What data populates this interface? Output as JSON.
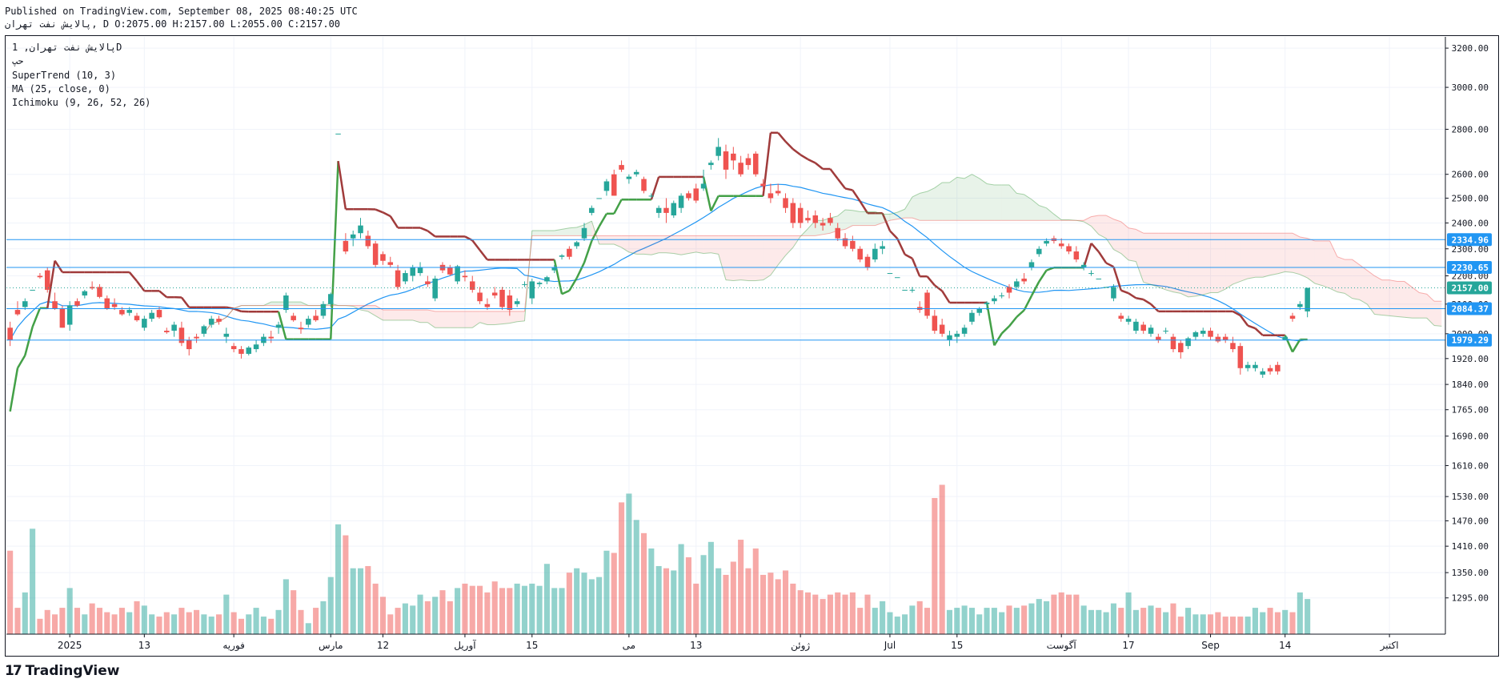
{
  "header": {
    "published": "Published on TradingView.com, September 08, 2025 08:40:25 UTC",
    "ohlc": "پالایش نفت تهران, D O:2075.00 H:2157.00 L:2055.00 C:2157.00"
  },
  "legend": {
    "symbol": "پالایش نفت تهران, 1D",
    "ticker": "حپ",
    "indicators": [
      "SuperTrend (10, 3)",
      "MA (25, close, 0)",
      "Ichimoku (9, 26, 52, 26)"
    ]
  },
  "branding": {
    "name": "TradingView",
    "mark": "17"
  },
  "chart_data": {
    "type": "candlestick",
    "timeframe": "1D",
    "y_axis": {
      "scale": "log",
      "range": [
        1220,
        3260
      ],
      "ticks": [
        3200,
        3000,
        2800,
        2600,
        2500,
        2400,
        2300,
        2200,
        2100,
        2000,
        1920,
        1840,
        1765,
        1690,
        1610,
        1530,
        1470,
        1410,
        1350,
        1295
      ],
      "tick_labels": [
        "3200.00",
        "3000.00",
        "2800.00",
        "2600.00",
        "2500.00",
        "2400.00",
        "2300.00",
        "2200.00",
        "2100.00",
        "2000.00",
        "1920.00",
        "1840.00",
        "1765.00",
        "1690.00",
        "1610.00",
        "1530.00",
        "1470.00",
        "1410.00",
        "1350.00",
        "1295.00"
      ]
    },
    "x_axis": {
      "tick_labels": [
        {
          "label": "2025",
          "bar": 8
        },
        {
          "label": "13",
          "bar": 18
        },
        {
          "label": "فوریه",
          "bar": 30
        },
        {
          "label": "مارس",
          "bar": 43
        },
        {
          "label": "12",
          "bar": 50
        },
        {
          "label": "آوریل",
          "bar": 61
        },
        {
          "label": "15",
          "bar": 70
        },
        {
          "label": "می",
          "bar": 83
        },
        {
          "label": "13",
          "bar": 92
        },
        {
          "label": "ژوئن",
          "bar": 106
        },
        {
          "label": "Jul",
          "bar": 118
        },
        {
          "label": "15",
          "bar": 127
        },
        {
          "label": "آگوست",
          "bar": 141
        },
        {
          "label": "17",
          "bar": 150
        },
        {
          "label": "Sep",
          "bar": 161
        },
        {
          "label": "14",
          "bar": 171
        },
        {
          "label": "اکتبر",
          "bar": 185
        }
      ],
      "total_slots": 193
    },
    "horizontal_lines": [
      {
        "value": 2334.96,
        "label": "2334.96",
        "style": "solid",
        "color": "#2196f3"
      },
      {
        "value": 2230.65,
        "label": "2230.65",
        "style": "solid",
        "color": "#2196f3"
      },
      {
        "value": 2157.0,
        "label": "2157.00",
        "style": "dotted",
        "color": "#26a69a",
        "current": true
      },
      {
        "value": 2084.37,
        "label": "2084.37",
        "style": "solid",
        "color": "#2196f3"
      },
      {
        "value": 1979.29,
        "label": "1979.29",
        "style": "solid",
        "color": "#2196f3"
      }
    ],
    "candles": [
      [
        2020,
        2040,
        1960,
        1980
      ],
      [
        2080,
        2110,
        2060,
        2065
      ],
      [
        2090,
        2120,
        2080,
        2110
      ],
      [
        2150,
        2150,
        2150,
        2150
      ],
      [
        2200,
        2210,
        2190,
        2195
      ],
      [
        2220,
        2230,
        2140,
        2150
      ],
      [
        2110,
        2140,
        2080,
        2085
      ],
      [
        2085,
        2095,
        2020,
        2020
      ],
      [
        2030,
        2110,
        2010,
        2095
      ],
      [
        2110,
        2120,
        2090,
        2095
      ],
      [
        2130,
        2150,
        2120,
        2145
      ],
      [
        2160,
        2180,
        2150,
        2155
      ],
      [
        2160,
        2170,
        2120,
        2125
      ],
      [
        2120,
        2130,
        2080,
        2085
      ],
      [
        2100,
        2120,
        2080,
        2090
      ],
      [
        2080,
        2090,
        2060,
        2065
      ],
      [
        2070,
        2090,
        2060,
        2080
      ],
      [
        2060,
        2070,
        2040,
        2045
      ],
      [
        2020,
        2060,
        2010,
        2050
      ],
      [
        2050,
        2080,
        2040,
        2070
      ],
      [
        2080,
        2090,
        2050,
        2055
      ],
      [
        2010,
        2020,
        2000,
        2005
      ],
      [
        2010,
        2040,
        1990,
        2030
      ],
      [
        2020,
        2040,
        1960,
        1970
      ],
      [
        1980,
        1990,
        1930,
        1950
      ],
      [
        1990,
        2000,
        1970,
        1985
      ],
      [
        2000,
        2030,
        1990,
        2025
      ],
      [
        2030,
        2060,
        2020,
        2050
      ],
      [
        2050,
        2060,
        2030,
        2040
      ],
      [
        1990,
        2020,
        1970,
        2000
      ],
      [
        1960,
        1970,
        1940,
        1950
      ],
      [
        1950,
        1960,
        1920,
        1935
      ],
      [
        1935,
        1960,
        1930,
        1955
      ],
      [
        1950,
        1980,
        1940,
        1965
      ],
      [
        1970,
        2000,
        1960,
        1990
      ],
      [
        1990,
        2010,
        1970,
        1985
      ],
      [
        2020,
        2040,
        2000,
        2030
      ],
      [
        2080,
        2140,
        2070,
        2130
      ],
      [
        2060,
        2070,
        2040,
        2045
      ],
      [
        2020,
        2040,
        2000,
        2015
      ],
      [
        2030,
        2060,
        2020,
        2050
      ],
      [
        2060,
        2080,
        2040,
        2045
      ],
      [
        2060,
        2110,
        2050,
        2100
      ],
      [
        2100,
        2140,
        2090,
        2135
      ],
      [
        2780,
        2780,
        2780,
        2780
      ],
      [
        2330,
        2360,
        2280,
        2290
      ],
      [
        2340,
        2370,
        2310,
        2355
      ],
      [
        2360,
        2420,
        2340,
        2390
      ],
      [
        2350,
        2370,
        2300,
        2310
      ],
      [
        2320,
        2330,
        2230,
        2240
      ],
      [
        2280,
        2290,
        2240,
        2255
      ],
      [
        2250,
        2270,
        2230,
        2240
      ],
      [
        2220,
        2240,
        2150,
        2160
      ],
      [
        2180,
        2220,
        2170,
        2210
      ],
      [
        2200,
        2240,
        2180,
        2230
      ],
      [
        2210,
        2250,
        2200,
        2230
      ],
      [
        2180,
        2200,
        2160,
        2170
      ],
      [
        2120,
        2200,
        2110,
        2190
      ],
      [
        2240,
        2250,
        2210,
        2220
      ],
      [
        2230,
        2240,
        2200,
        2205
      ],
      [
        2180,
        2240,
        2170,
        2235
      ],
      [
        2200,
        2220,
        2180,
        2195
      ],
      [
        2180,
        2200,
        2140,
        2150
      ],
      [
        2140,
        2160,
        2100,
        2110
      ],
      [
        2100,
        2120,
        2080,
        2090
      ],
      [
        2140,
        2160,
        2120,
        2130
      ],
      [
        2150,
        2160,
        2080,
        2090
      ],
      [
        2130,
        2150,
        2060,
        2080
      ],
      [
        2100,
        2120,
        2090,
        2110
      ],
      [
        2170,
        2180,
        2160,
        2170
      ],
      [
        2120,
        2190,
        2100,
        2180
      ],
      [
        2170,
        2180,
        2160,
        2175
      ],
      [
        2180,
        2200,
        2170,
        2195
      ],
      [
        2220,
        2240,
        2210,
        2230
      ],
      [
        2270,
        2280,
        2260,
        2275
      ],
      [
        2300,
        2310,
        2260,
        2270
      ],
      [
        2310,
        2330,
        2300,
        2325
      ],
      [
        2340,
        2400,
        2330,
        2380
      ],
      [
        2440,
        2470,
        2430,
        2460
      ],
      [
        2500,
        2500,
        2500,
        2500
      ],
      [
        2530,
        2580,
        2510,
        2570
      ],
      [
        2600,
        2620,
        2510,
        2510
      ],
      [
        2640,
        2660,
        2610,
        2620
      ],
      [
        2580,
        2600,
        2560,
        2590
      ],
      [
        2600,
        2620,
        2590,
        2610
      ],
      [
        2580,
        2590,
        2520,
        2530
      ],
      [
        2510,
        2520,
        2500,
        2510
      ],
      [
        2440,
        2470,
        2420,
        2460
      ],
      [
        2460,
        2500,
        2400,
        2440
      ],
      [
        2430,
        2490,
        2420,
        2480
      ],
      [
        2460,
        2520,
        2440,
        2510
      ],
      [
        2520,
        2530,
        2490,
        2500
      ],
      [
        2540,
        2560,
        2480,
        2490
      ],
      [
        2540,
        2620,
        2530,
        2560
      ],
      [
        2640,
        2660,
        2620,
        2650
      ],
      [
        2680,
        2760,
        2660,
        2720
      ],
      [
        2700,
        2730,
        2580,
        2620
      ],
      [
        2690,
        2720,
        2620,
        2660
      ],
      [
        2650,
        2680,
        2590,
        2600
      ],
      [
        2670,
        2690,
        2620,
        2640
      ],
      [
        2690,
        2700,
        2590,
        2600
      ],
      [
        2560,
        2580,
        2530,
        2550
      ],
      [
        2520,
        2560,
        2480,
        2500
      ],
      [
        2530,
        2560,
        2510,
        2520
      ],
      [
        2500,
        2520,
        2440,
        2460
      ],
      [
        2480,
        2500,
        2380,
        2400
      ],
      [
        2460,
        2480,
        2380,
        2400
      ],
      [
        2420,
        2450,
        2400,
        2410
      ],
      [
        2430,
        2450,
        2380,
        2400
      ],
      [
        2400,
        2420,
        2370,
        2390
      ],
      [
        2420,
        2440,
        2390,
        2400
      ],
      [
        2380,
        2400,
        2330,
        2340
      ],
      [
        2340,
        2360,
        2300,
        2310
      ],
      [
        2330,
        2350,
        2290,
        2300
      ],
      [
        2300,
        2310,
        2250,
        2260
      ],
      [
        2270,
        2280,
        2220,
        2230
      ],
      [
        2260,
        2320,
        2250,
        2300
      ],
      [
        2300,
        2330,
        2280,
        2310
      ],
      [
        2210,
        2210,
        2210,
        2210
      ],
      [
        2195,
        2195,
        2195,
        2195
      ],
      [
        2150,
        2150,
        2150,
        2150
      ],
      [
        2150,
        2160,
        2140,
        2150
      ],
      [
        2090,
        2110,
        2070,
        2080
      ],
      [
        2140,
        2150,
        2050,
        2060
      ],
      [
        2060,
        2080,
        2000,
        2010
      ],
      [
        2030,
        2050,
        1990,
        2000
      ],
      [
        1980,
        2010,
        1960,
        1995
      ],
      [
        1990,
        2010,
        1970,
        2000
      ],
      [
        2000,
        2030,
        1990,
        2020
      ],
      [
        2040,
        2080,
        2030,
        2070
      ],
      [
        2070,
        2090,
        2060,
        2085
      ],
      [
        2100,
        2110,
        2080,
        2105
      ],
      [
        2110,
        2130,
        2100,
        2120
      ],
      [
        2130,
        2140,
        2120,
        2130
      ],
      [
        2160,
        2170,
        2120,
        2140
      ],
      [
        2160,
        2190,
        2150,
        2180
      ],
      [
        2190,
        2210,
        2170,
        2180
      ],
      [
        2230,
        2260,
        2220,
        2250
      ],
      [
        2280,
        2310,
        2270,
        2300
      ],
      [
        2320,
        2340,
        2310,
        2330
      ],
      [
        2340,
        2350,
        2320,
        2330
      ],
      [
        2320,
        2340,
        2300,
        2310
      ],
      [
        2310,
        2320,
        2280,
        2290
      ],
      [
        2290,
        2310,
        2250,
        2260
      ],
      [
        2230,
        2250,
        2220,
        2240
      ],
      [
        2210,
        2220,
        2200,
        2210
      ],
      [
        2190,
        2190,
        2190,
        2190
      ],
      [
        2160,
        2160,
        2160,
        2160
      ],
      [
        2120,
        2170,
        2110,
        2160
      ],
      [
        2060,
        2070,
        2040,
        2050
      ],
      [
        2040,
        2060,
        2030,
        2050
      ],
      [
        2010,
        2050,
        2000,
        2040
      ],
      [
        2030,
        2040,
        2000,
        2010
      ],
      [
        2000,
        2030,
        1990,
        2020
      ],
      [
        1990,
        2000,
        1970,
        1980
      ],
      [
        2010,
        2020,
        2000,
        2010
      ],
      [
        1990,
        2000,
        1940,
        1950
      ],
      [
        1970,
        1980,
        1920,
        1940
      ],
      [
        1960,
        1990,
        1950,
        1985
      ],
      [
        1990,
        2010,
        1980,
        2005
      ],
      [
        2000,
        2020,
        1990,
        2010
      ],
      [
        2010,
        2020,
        1980,
        1990
      ],
      [
        1990,
        2000,
        1970,
        1975
      ],
      [
        1990,
        2000,
        1970,
        1980
      ],
      [
        1970,
        1990,
        1940,
        1950
      ],
      [
        1960,
        1970,
        1870,
        1890
      ],
      [
        1890,
        1910,
        1880,
        1900
      ],
      [
        1890,
        1910,
        1880,
        1900
      ],
      [
        1870,
        1890,
        1860,
        1880
      ],
      [
        1890,
        1900,
        1870,
        1880
      ],
      [
        1900,
        1910,
        1870,
        1880
      ],
      [
        1980,
        1990,
        1980,
        1990
      ],
      [
        2060,
        2070,
        2040,
        2050
      ],
      [
        2090,
        2110,
        2080,
        2100
      ],
      [
        2075,
        2157,
        2055,
        2157
      ]
    ],
    "volume": [
      380,
      120,
      190,
      480,
      70,
      110,
      90,
      120,
      210,
      120,
      90,
      140,
      120,
      100,
      90,
      120,
      100,
      150,
      130,
      90,
      80,
      100,
      90,
      120,
      100,
      110,
      90,
      80,
      90,
      180,
      100,
      70,
      90,
      120,
      80,
      70,
      110,
      250,
      200,
      110,
      50,
      120,
      150,
      260,
      500,
      450,
      300,
      300,
      310,
      230,
      170,
      90,
      120,
      140,
      130,
      180,
      150,
      170,
      200,
      150,
      210,
      230,
      220,
      220,
      190,
      240,
      210,
      210,
      230,
      220,
      230,
      220,
      320,
      210,
      210,
      280,
      300,
      280,
      250,
      260,
      380,
      370,
      600,
      640,
      520,
      460,
      390,
      310,
      300,
      290,
      410,
      350,
      230,
      360,
      420,
      300,
      270,
      330,
      430,
      300,
      390,
      270,
      280,
      250,
      290,
      230,
      200,
      190,
      180,
      160,
      180,
      190,
      180,
      190,
      120,
      180,
      120,
      150,
      100,
      80,
      90,
      130,
      150,
      120,
      620,
      680,
      110,
      120,
      130,
      120,
      90,
      120,
      120,
      100,
      130,
      120,
      130,
      140,
      160,
      150,
      180,
      190,
      180,
      180,
      130,
      110,
      110,
      100,
      140,
      120,
      190,
      110,
      120,
      130,
      120,
      100,
      140,
      80,
      120,
      90,
      90,
      90,
      100,
      80,
      80,
      80,
      80,
      120,
      100,
      120,
      100,
      110,
      100,
      190,
      160
    ],
    "volume_colors_up": "#26a69a",
    "supertrend": {
      "color_up": "#43a047",
      "color_down": "#a03b3b"
    },
    "ma_color": "#2196f3",
    "ichimoku": {
      "cloud_up": "#43a047",
      "cloud_down": "#ef5350"
    },
    "colors": {
      "up": "#26a69a",
      "down": "#ef5350",
      "grid": "#f0f3fa",
      "axis_text": "#131722"
    }
  }
}
